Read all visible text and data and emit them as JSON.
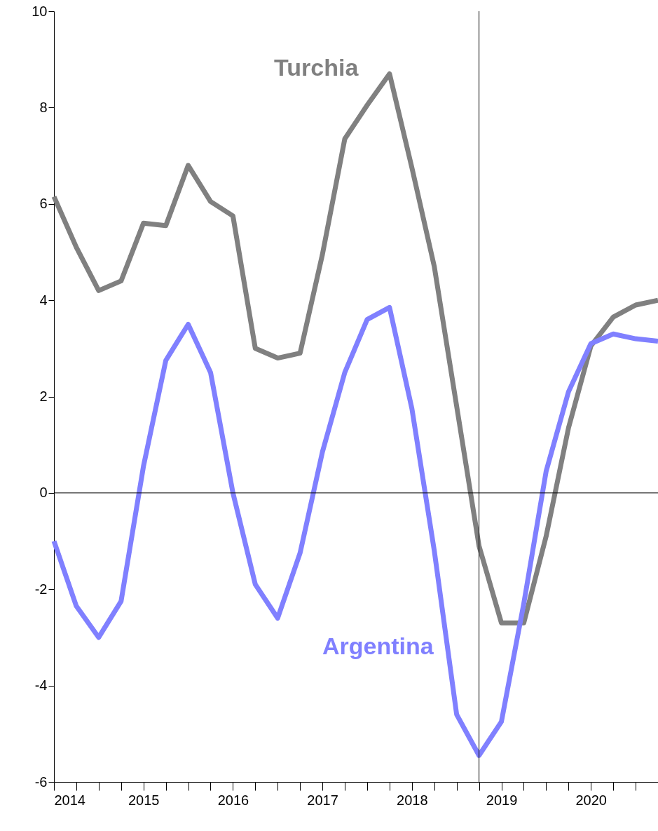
{
  "chart_data": {
    "type": "line",
    "x": [
      2014,
      2014.25,
      2014.5,
      2014.75,
      2015,
      2015.25,
      2015.5,
      2015.75,
      2016,
      2016.25,
      2016.5,
      2016.75,
      2017,
      2017.25,
      2017.5,
      2017.75,
      2018,
      2018.25,
      2018.5,
      2018.75,
      2019,
      2019.25,
      2019.5,
      2019.75,
      2020,
      2020.25,
      2020.5,
      2020.75
    ],
    "series": [
      {
        "name": "Turchia",
        "color": "#808080",
        "values": [
          6.15,
          5.1,
          4.2,
          4.4,
          5.6,
          5.55,
          6.8,
          6.05,
          5.75,
          3.0,
          2.8,
          2.9,
          4.95,
          7.35,
          8.05,
          8.7,
          6.75,
          4.7,
          1.8,
          -1.1,
          -2.7,
          -2.7,
          -0.9,
          1.35,
          3.05,
          3.65,
          3.9,
          4.0
        ]
      },
      {
        "name": "Argentina",
        "color": "#8080ff",
        "values": [
          -1.0,
          -2.35,
          -3.0,
          -2.25,
          0.55,
          2.75,
          3.5,
          2.5,
          0.0,
          -1.9,
          -2.6,
          -1.25,
          0.85,
          2.5,
          3.6,
          3.85,
          1.75,
          -1.2,
          -4.6,
          -5.45,
          -4.75,
          -2.3,
          0.45,
          2.1,
          3.1,
          3.3,
          3.2,
          3.15
        ]
      }
    ],
    "xlim": [
      2014,
      2020.75
    ],
    "xticks": [
      2014,
      {
        "value": 2014.25,
        "label": null
      },
      {
        "value": 2014.5,
        "label": null
      },
      {
        "value": 2014.75,
        "label": null
      },
      2015,
      {
        "value": 2015.25,
        "label": null
      },
      {
        "value": 2015.5,
        "label": null
      },
      {
        "value": 2015.75,
        "label": null
      },
      2016,
      {
        "value": 2016.25,
        "label": null
      },
      {
        "value": 2016.5,
        "label": null
      },
      {
        "value": 2016.75,
        "label": null
      },
      2017,
      {
        "value": 2017.25,
        "label": null
      },
      {
        "value": 2017.5,
        "label": null
      },
      {
        "value": 2017.75,
        "label": null
      },
      2018,
      {
        "value": 2018.25,
        "label": null
      },
      {
        "value": 2018.5,
        "label": null
      },
      {
        "value": 2018.75,
        "label": null
      },
      2019,
      {
        "value": 2019.25,
        "label": null
      },
      {
        "value": 2019.5,
        "label": null
      },
      {
        "value": 2019.75,
        "label": null
      },
      2020,
      {
        "value": 2020.25,
        "label": null
      },
      {
        "value": 2020.5,
        "label": null
      }
    ],
    "ylim": [
      -6,
      10
    ],
    "yticks": [
      -6,
      -4,
      -2,
      0,
      2,
      4,
      6,
      8,
      10
    ],
    "ref_lines": [
      {
        "axis": "y",
        "value": 0,
        "color": "#000000"
      },
      {
        "axis": "x",
        "value": 2018.75,
        "color": "#000000"
      }
    ],
    "grid": false,
    "marker": "none",
    "line_style": "solid"
  }
}
